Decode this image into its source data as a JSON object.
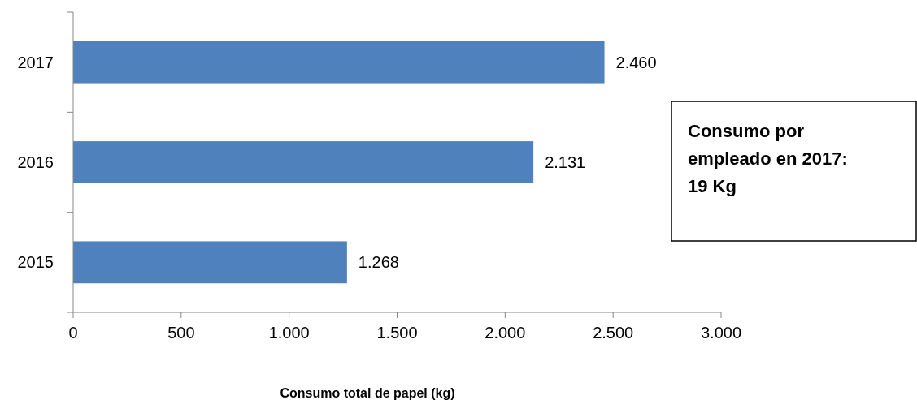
{
  "chart_data": {
    "type": "bar",
    "orientation": "horizontal",
    "categories": [
      "2017",
      "2016",
      "2015"
    ],
    "values": [
      2460,
      2131,
      1268
    ],
    "color": "#4f81bd",
    "value_labels": [
      "2.460",
      "2.131",
      "1.268"
    ],
    "xlim": [
      0,
      3000
    ],
    "xticks": [
      0,
      500,
      {
        "value": 1000,
        "label": "1.000"
      },
      {
        "value": 1500,
        "label": "1.500"
      },
      {
        "value": 2000,
        "label": "2.000"
      },
      {
        "value": 2500,
        "label": "2.500"
      },
      {
        "value": 3000,
        "label": "3.000"
      }
    ],
    "xlabel": "Consumo total de papel (kg)",
    "annotations": [
      "Consumo por empleado en 2017: 19 Kg"
    ],
    "grid": false
  }
}
